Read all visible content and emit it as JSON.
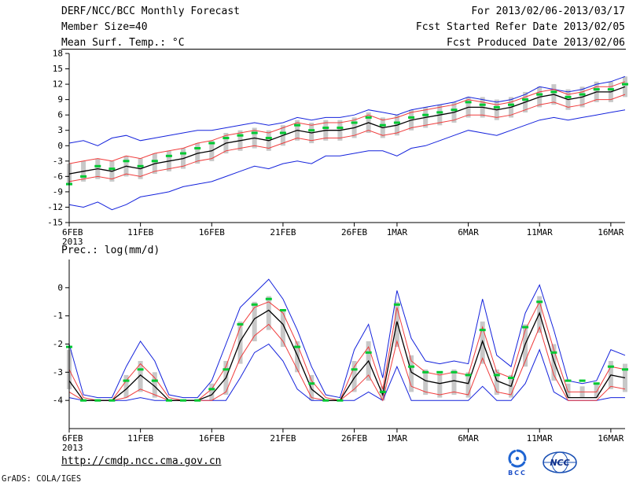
{
  "header": {
    "line1_left": "DERF/NCC/BCC Monthly Forecast",
    "line1_right": "For 2013/02/06-2013/03/17",
    "line2_left": "Member Size=40",
    "line2_right": "Fcst Started Refer Date 2013/02/05",
    "line3_left": "Mean Surf. Temp.: °C",
    "line3_right": "Fcst Produced Date 2013/02/06"
  },
  "footer": {
    "url": "http://cmdp.ncc.cma.gov.cn",
    "bcc_label": "BCC",
    "ncc_label": "NCC",
    "credit": "GrADS: COLA/IGES"
  },
  "chart_data": [
    {
      "id": "temperature",
      "type": "line",
      "title": "Mean Surf. Temp.: °C",
      "grid": false,
      "legend": false,
      "ylim": [
        -15,
        18
      ],
      "yticks": [
        18,
        15,
        12,
        9,
        6,
        3,
        0,
        -3,
        -6,
        -9,
        -12,
        -15
      ],
      "xticks": [
        {
          "label": "6FEB",
          "day": 0
        },
        {
          "label": "11FEB",
          "day": 5
        },
        {
          "label": "16FEB",
          "day": 10
        },
        {
          "label": "21FEB",
          "day": 15
        },
        {
          "label": "26FEB",
          "day": 20
        },
        {
          "label": "1MAR",
          "day": 23
        },
        {
          "label": "6MAR",
          "day": 28
        },
        {
          "label": "11MAR",
          "day": 33
        },
        {
          "label": "16MAR",
          "day": 38
        }
      ],
      "year_label": "2013",
      "categories": [
        "6FEB",
        "7FEB",
        "8FEB",
        "9FEB",
        "10FEB",
        "11FEB",
        "12FEB",
        "13FEB",
        "14FEB",
        "15FEB",
        "16FEB",
        "17FEB",
        "18FEB",
        "19FEB",
        "20FEB",
        "21FEB",
        "22FEB",
        "23FEB",
        "24FEB",
        "25FEB",
        "26FEB",
        "27FEB",
        "28FEB",
        "1MAR",
        "2MAR",
        "3MAR",
        "4MAR",
        "5MAR",
        "6MAR",
        "7MAR",
        "8MAR",
        "9MAR",
        "10MAR",
        "11MAR",
        "12MAR",
        "13MAR",
        "14MAR",
        "15MAR",
        "16MAR",
        "17MAR"
      ],
      "series": [
        {
          "name": "ensemble-max",
          "color": "#1422dc",
          "width": 1,
          "values": [
            0.5,
            1.0,
            0.0,
            1.5,
            2.0,
            1.0,
            1.5,
            2.0,
            2.5,
            3.0,
            3.0,
            3.5,
            4.0,
            4.5,
            4.0,
            4.5,
            5.5,
            5.0,
            5.5,
            5.5,
            6.0,
            7.0,
            6.5,
            6.0,
            7.0,
            7.5,
            8.0,
            8.5,
            9.5,
            9.0,
            8.5,
            9.0,
            10.0,
            11.5,
            11.0,
            10.5,
            11.0,
            12.0,
            12.5,
            13.5
          ]
        },
        {
          "name": "ensemble-min",
          "color": "#1422dc",
          "width": 1,
          "values": [
            -11.5,
            -12.0,
            -11.0,
            -12.5,
            -11.5,
            -10.0,
            -9.5,
            -9.0,
            -8.0,
            -7.5,
            -7.0,
            -6.0,
            -5.0,
            -4.0,
            -4.5,
            -3.5,
            -3.0,
            -3.5,
            -2.0,
            -2.0,
            -1.5,
            -1.0,
            -1.0,
            -2.0,
            -0.5,
            0.0,
            1.0,
            2.0,
            3.0,
            2.5,
            2.0,
            3.0,
            4.0,
            5.0,
            5.5,
            5.0,
            5.5,
            6.0,
            6.5,
            7.0
          ]
        },
        {
          "name": "upper-quartile",
          "color": "#f03c3c",
          "width": 1,
          "values": [
            -3.5,
            -3.0,
            -2.5,
            -3.0,
            -2.0,
            -2.5,
            -1.5,
            -1.0,
            -0.5,
            0.5,
            1.0,
            2.0,
            2.5,
            3.0,
            2.5,
            3.5,
            4.5,
            4.0,
            4.5,
            4.5,
            5.0,
            6.0,
            5.0,
            5.5,
            6.5,
            7.0,
            7.5,
            8.0,
            9.0,
            8.5,
            8.0,
            8.5,
            9.5,
            10.5,
            11.0,
            10.0,
            10.5,
            11.5,
            11.5,
            12.5
          ]
        },
        {
          "name": "lower-quartile",
          "color": "#f03c3c",
          "width": 1,
          "values": [
            -7.0,
            -6.5,
            -6.0,
            -6.5,
            -5.5,
            -6.0,
            -5.0,
            -4.5,
            -4.0,
            -3.0,
            -2.5,
            -1.0,
            -0.5,
            0.0,
            -0.5,
            0.5,
            1.5,
            1.0,
            1.5,
            1.5,
            2.0,
            3.0,
            2.0,
            2.5,
            3.5,
            4.0,
            4.5,
            5.0,
            6.0,
            6.0,
            5.5,
            6.0,
            7.0,
            8.0,
            8.5,
            7.5,
            8.0,
            9.0,
            9.0,
            10.0
          ]
        },
        {
          "name": "ensemble-mean",
          "color": "#000000",
          "width": 1.3,
          "values": [
            -5.5,
            -5.0,
            -4.5,
            -5.0,
            -4.0,
            -4.5,
            -3.5,
            -3.0,
            -2.5,
            -1.5,
            -1.0,
            0.5,
            1.0,
            1.5,
            1.0,
            2.0,
            3.0,
            2.5,
            3.0,
            3.0,
            3.5,
            4.5,
            3.5,
            4.0,
            5.0,
            5.5,
            6.0,
            6.5,
            7.5,
            7.5,
            7.0,
            7.5,
            8.5,
            9.5,
            10.0,
            9.0,
            9.5,
            10.5,
            10.5,
            11.5
          ]
        }
      ],
      "dashes": {
        "name": "ensemble-median",
        "color": "#00c832",
        "values": [
          -7.5,
          -6.0,
          -4.0,
          -4.5,
          -3.0,
          -4.0,
          -3.0,
          -2.0,
          -1.5,
          -0.5,
          0.5,
          1.5,
          2.0,
          2.5,
          1.5,
          2.5,
          4.0,
          3.0,
          3.5,
          3.5,
          4.5,
          5.5,
          4.0,
          4.5,
          5.5,
          6.0,
          6.5,
          7.0,
          8.5,
          8.0,
          7.5,
          8.0,
          9.0,
          10.0,
          10.5,
          9.5,
          10.0,
          11.0,
          11.0,
          12.0
        ]
      },
      "bars": {
        "name": "ensemble-spread",
        "color": "#c8c8c8",
        "high": [
          -3.5,
          -3.0,
          -2.5,
          -3.0,
          -2.0,
          -2.5,
          -1.5,
          -1.0,
          -0.5,
          0.5,
          1.0,
          2.5,
          3.0,
          3.5,
          3.0,
          4.0,
          5.0,
          4.5,
          5.0,
          5.0,
          5.5,
          6.5,
          5.5,
          6.0,
          7.0,
          7.5,
          8.0,
          8.5,
          9.5,
          9.5,
          9.0,
          9.5,
          10.5,
          11.5,
          12.0,
          11.0,
          11.5,
          12.5,
          12.5,
          13.5
        ],
        "low": [
          -7.5,
          -7.0,
          -6.5,
          -7.0,
          -6.0,
          -6.5,
          -5.5,
          -5.0,
          -4.5,
          -3.5,
          -3.0,
          -1.5,
          -1.0,
          -0.5,
          -1.0,
          0.0,
          1.0,
          0.5,
          1.0,
          1.0,
          1.5,
          2.5,
          1.5,
          2.0,
          3.0,
          3.5,
          4.0,
          4.5,
          5.5,
          5.5,
          5.0,
          5.5,
          6.5,
          7.5,
          8.0,
          7.0,
          7.5,
          8.5,
          8.5,
          9.5
        ]
      }
    },
    {
      "id": "precipitation",
      "type": "line",
      "title": "Prec.: log(mm/d)",
      "grid": false,
      "legend": false,
      "ylim": [
        -5,
        1
      ],
      "yticks": [
        0,
        -1,
        -2,
        -3,
        -4
      ],
      "xticks": [
        {
          "label": "6FEB",
          "day": 0
        },
        {
          "label": "11FEB",
          "day": 5
        },
        {
          "label": "16FEB",
          "day": 10
        },
        {
          "label": "21FEB",
          "day": 15
        },
        {
          "label": "26FEB",
          "day": 20
        },
        {
          "label": "1MAR",
          "day": 23
        },
        {
          "label": "6MAR",
          "day": 28
        },
        {
          "label": "11MAR",
          "day": 33
        },
        {
          "label": "16MAR",
          "day": 38
        }
      ],
      "year_label": "2013",
      "categories": [
        "6FEB",
        "7FEB",
        "8FEB",
        "9FEB",
        "10FEB",
        "11FEB",
        "12FEB",
        "13FEB",
        "14FEB",
        "15FEB",
        "16FEB",
        "17FEB",
        "18FEB",
        "19FEB",
        "20FEB",
        "21FEB",
        "22FEB",
        "23FEB",
        "24FEB",
        "25FEB",
        "26FEB",
        "27FEB",
        "28FEB",
        "1MAR",
        "2MAR",
        "3MAR",
        "4MAR",
        "5MAR",
        "6MAR",
        "7MAR",
        "8MAR",
        "9MAR",
        "10MAR",
        "11MAR",
        "12MAR",
        "13MAR",
        "14MAR",
        "15MAR",
        "16MAR",
        "17MAR"
      ],
      "series": [
        {
          "name": "ensemble-max",
          "color": "#1422dc",
          "width": 1,
          "values": [
            -2.0,
            -3.8,
            -3.9,
            -3.9,
            -2.8,
            -1.9,
            -2.6,
            -3.8,
            -3.9,
            -3.9,
            -3.3,
            -2.0,
            -0.7,
            -0.2,
            0.3,
            -0.4,
            -1.5,
            -2.8,
            -3.8,
            -3.9,
            -2.2,
            -1.3,
            -3.2,
            -0.1,
            -1.8,
            -2.6,
            -2.7,
            -2.6,
            -2.7,
            -0.4,
            -2.4,
            -2.8,
            -0.9,
            0.1,
            -1.5,
            -3.3,
            -3.4,
            -3.3,
            -2.2,
            -2.4
          ]
        },
        {
          "name": "ensemble-min",
          "color": "#1422dc",
          "width": 1,
          "values": [
            -3.9,
            -4.0,
            -4.0,
            -4.0,
            -4.0,
            -3.9,
            -4.0,
            -4.0,
            -4.0,
            -4.0,
            -4.0,
            -4.0,
            -3.2,
            -2.3,
            -2.0,
            -2.6,
            -3.6,
            -4.0,
            -4.0,
            -4.0,
            -4.0,
            -3.7,
            -4.0,
            -2.8,
            -4.0,
            -4.0,
            -4.0,
            -4.0,
            -4.0,
            -3.5,
            -4.0,
            -4.0,
            -3.4,
            -2.2,
            -3.7,
            -4.0,
            -4.0,
            -4.0,
            -3.9,
            -3.9
          ]
        },
        {
          "name": "upper-quartile",
          "color": "#f03c3c",
          "width": 1,
          "values": [
            -2.9,
            -3.9,
            -4.0,
            -4.0,
            -3.3,
            -2.7,
            -3.2,
            -3.9,
            -4.0,
            -4.0,
            -3.6,
            -2.8,
            -1.4,
            -0.7,
            -0.5,
            -0.9,
            -2.0,
            -3.3,
            -3.9,
            -4.0,
            -2.8,
            -2.1,
            -3.6,
            -0.7,
            -2.6,
            -3.0,
            -3.1,
            -3.0,
            -3.1,
            -1.4,
            -3.0,
            -3.2,
            -1.5,
            -0.5,
            -2.2,
            -3.7,
            -3.7,
            -3.7,
            -2.8,
            -2.9
          ]
        },
        {
          "name": "lower-quartile",
          "color": "#f03c3c",
          "width": 1,
          "values": [
            -3.7,
            -4.0,
            -4.0,
            -4.0,
            -3.9,
            -3.6,
            -3.8,
            -4.0,
            -4.0,
            -4.0,
            -4.0,
            -3.7,
            -2.5,
            -1.7,
            -1.3,
            -1.9,
            -2.9,
            -3.9,
            -4.0,
            -4.0,
            -3.6,
            -3.1,
            -4.0,
            -1.9,
            -3.5,
            -3.7,
            -3.8,
            -3.7,
            -3.8,
            -2.5,
            -3.7,
            -3.8,
            -2.6,
            -1.4,
            -3.1,
            -4.0,
            -4.0,
            -4.0,
            -3.5,
            -3.6
          ]
        },
        {
          "name": "ensemble-mean",
          "color": "#000000",
          "width": 1.3,
          "values": [
            -3.3,
            -4.0,
            -4.0,
            -4.0,
            -3.6,
            -3.1,
            -3.5,
            -4.0,
            -4.0,
            -4.0,
            -3.8,
            -3.2,
            -1.9,
            -1.1,
            -0.8,
            -1.3,
            -2.4,
            -3.6,
            -4.0,
            -4.0,
            -3.2,
            -2.6,
            -3.8,
            -1.2,
            -3.0,
            -3.3,
            -3.4,
            -3.3,
            -3.4,
            -1.9,
            -3.3,
            -3.5,
            -2.0,
            -0.9,
            -2.6,
            -3.9,
            -3.9,
            -3.9,
            -3.1,
            -3.2
          ]
        }
      ],
      "dashes": {
        "name": "ensemble-median",
        "color": "#00c832",
        "values": [
          -2.1,
          -4.0,
          -4.0,
          -4.0,
          -3.3,
          -2.9,
          -3.3,
          -4.0,
          -4.0,
          -4.0,
          -3.6,
          -2.9,
          -1.3,
          -0.6,
          -0.4,
          -0.8,
          -2.1,
          -3.4,
          -4.0,
          -4.0,
          -2.9,
          -2.3,
          -3.7,
          -0.6,
          -2.8,
          -3.0,
          -3.0,
          -3.0,
          -3.1,
          -1.5,
          -3.1,
          -3.2,
          -1.4,
          -0.5,
          -2.3,
          -3.3,
          -3.3,
          -3.4,
          -2.8,
          -2.9
        ]
      },
      "bars": {
        "name": "ensemble-spread",
        "color": "#c8c8c8",
        "high": [
          -2.2,
          -4.0,
          -4.0,
          -4.0,
          -3.1,
          -2.6,
          -3.0,
          -4.0,
          -4.0,
          -4.0,
          -3.4,
          -2.6,
          -1.2,
          -0.5,
          -0.3,
          -0.8,
          -1.9,
          -3.1,
          -4.0,
          -4.0,
          -2.6,
          -1.9,
          -3.5,
          -0.5,
          -2.4,
          -2.9,
          -3.0,
          -2.9,
          -3.0,
          -1.2,
          -2.9,
          -3.1,
          -1.3,
          -0.3,
          -2.0,
          -3.4,
          -3.5,
          -3.4,
          -2.6,
          -2.7
        ],
        "low": [
          -3.6,
          -4.0,
          -4.0,
          -4.0,
          -3.9,
          -3.7,
          -3.9,
          -4.0,
          -4.0,
          -4.0,
          -4.0,
          -3.8,
          -2.7,
          -1.9,
          -1.5,
          -2.1,
          -3.0,
          -4.0,
          -4.0,
          -4.0,
          -3.7,
          -3.3,
          -4.0,
          -2.1,
          -3.7,
          -3.8,
          -3.9,
          -3.8,
          -3.9,
          -2.7,
          -3.8,
          -3.9,
          -2.8,
          -1.6,
          -3.3,
          -3.9,
          -3.9,
          -3.9,
          -3.6,
          -3.7
        ]
      }
    }
  ]
}
